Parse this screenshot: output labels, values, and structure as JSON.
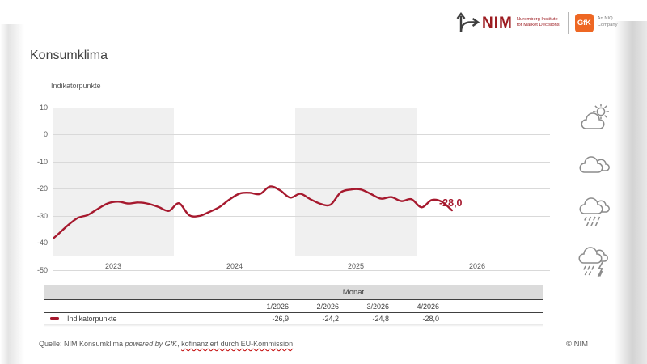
{
  "brand": {
    "nim_name": "NIM",
    "nim_tagline_line1": "Nuremberg Institute",
    "nim_tagline_line2": "for Market Decisions",
    "gfk_name": "GfK",
    "gfk_tagline_line1": "An NIQ",
    "gfk_tagline_line2": "Company"
  },
  "page_title": "Konsumklima",
  "chart": {
    "axis_title": "Indikatorpunkte",
    "y_ticks": [
      "10",
      "0",
      "-10",
      "-20",
      "-30",
      "-40",
      "-50"
    ],
    "x_labels": [
      "2023",
      "2024",
      "2025",
      "2026"
    ],
    "end_label": "-28,0"
  },
  "chart_data": {
    "type": "line",
    "title": "Konsumklima",
    "ylabel": "Indikatorpunkte",
    "ylim": [
      -50,
      10
    ],
    "grid": "horizontal",
    "x_unit": "month",
    "x": [
      "12/2022",
      "1/2023",
      "2/2023",
      "3/2023",
      "4/2023",
      "5/2023",
      "6/2023",
      "7/2023",
      "8/2023",
      "9/2023",
      "10/2023",
      "11/2023",
      "12/2023",
      "1/2024",
      "2/2024",
      "3/2024",
      "4/2024",
      "5/2024",
      "6/2024",
      "7/2024",
      "8/2024",
      "9/2024",
      "10/2024",
      "11/2024",
      "12/2024",
      "1/2025",
      "2/2025",
      "3/2025",
      "4/2025",
      "5/2025",
      "6/2025",
      "7/2025",
      "8/2025",
      "9/2025",
      "10/2025",
      "11/2025",
      "12/2025",
      "1/2026",
      "2/2026",
      "3/2026",
      "4/2026"
    ],
    "series": [
      {
        "name": "Indikatorpunkte",
        "color": "#a6192e",
        "values": [
          -40.2,
          -37.0,
          -33.6,
          -30.8,
          -29.7,
          -27.4,
          -25.4,
          -24.8,
          -25.5,
          -25.1,
          -25.6,
          -26.8,
          -28.2,
          -25.4,
          -29.8,
          -30.1,
          -28.6,
          -26.8,
          -24.0,
          -21.8,
          -21.5,
          -22.0,
          -19.2,
          -20.6,
          -23.3,
          -21.9,
          -23.9,
          -25.6,
          -25.9,
          -21.4,
          -20.3,
          -20.3,
          -22.0,
          -23.7,
          -23.1,
          -24.6,
          -23.9,
          -26.9,
          -24.2,
          -24.8,
          -28.0
        ]
      }
    ],
    "end_point_label": "-28,0",
    "year_band_color": "#f0f0f0"
  },
  "table": {
    "group_header": "Monat",
    "columns": [
      "1/2026",
      "2/2026",
      "3/2026",
      "4/2026"
    ],
    "row_label": "Indikatorpunkte",
    "row_values": [
      "-26,9",
      "-24,2",
      "-24,8",
      "-28,0"
    ]
  },
  "weather_icons": [
    "sun-behind-cloud",
    "clouds",
    "rain-cloud",
    "storm-cloud"
  ],
  "footer": {
    "source_prefix": "Quelle: NIM Konsumklima ",
    "source_italic": "powered by GfK",
    "source_separator": ", ",
    "source_underlined": "kofinanziert durch EU-Kommission",
    "copyright": "© NIM"
  },
  "colors": {
    "line_red": "#a6192e",
    "nim_red": "#9c1b20",
    "gfk_orange": "#ee6723",
    "band_gray": "#f0f0f0",
    "grid_gray": "#d9d9d9",
    "text_dark": "#404040",
    "text_mid": "#595959"
  }
}
